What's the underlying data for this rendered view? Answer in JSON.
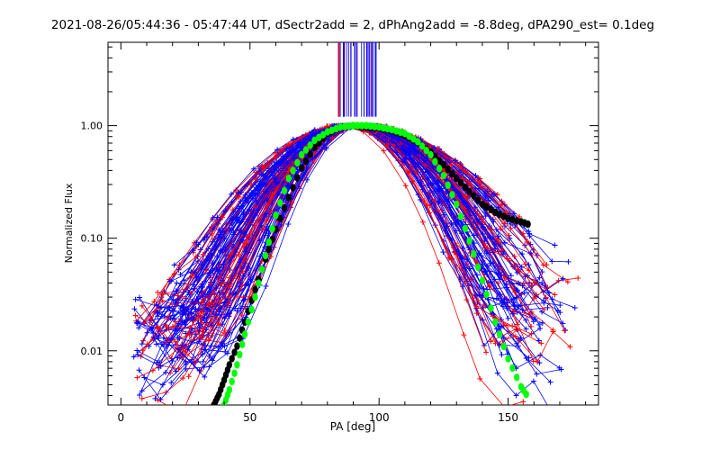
{
  "chart_data": {
    "type": "line",
    "title": "2021-08-26/05:44:36 - 05:47:44 UT, dSectr2add = 2, dPhAng2add = -8.8deg, dPA290_est=  0.1deg",
    "xlabel": "PA [deg]",
    "ylabel": "Normalized Flux",
    "xlim": [
      -5,
      185
    ],
    "ylim": [
      0.0033,
      5.5
    ],
    "yscale": "log",
    "x_ticks": [
      0,
      50,
      100,
      150
    ],
    "x_tick_labels": [
      "0",
      "50",
      "100",
      "150"
    ],
    "y_ticks": [
      0.01,
      0.1,
      1.0
    ],
    "y_tick_labels": [
      "0.01",
      "0.10",
      "1.00"
    ],
    "grid": false,
    "legend": "none",
    "colors": {
      "red_curves": "#ff0000",
      "blue_curves": "#0000ff",
      "black_fit": "#000000",
      "green_fit": "#00ff00",
      "axes": "#000000"
    },
    "series": [
      {
        "style": "black dotted fit",
        "x": [
          36,
          38,
          40,
          42,
          45,
          48,
          52,
          56,
          60,
          65,
          70,
          75,
          80,
          85,
          90,
          95,
          100,
          105,
          110,
          115,
          120,
          125,
          130,
          135,
          140,
          145,
          150,
          155,
          159
        ],
        "y": [
          0.0033,
          0.0041,
          0.0055,
          0.0075,
          0.011,
          0.018,
          0.035,
          0.065,
          0.12,
          0.23,
          0.42,
          0.64,
          0.85,
          0.97,
          1.0,
          0.97,
          0.95,
          0.9,
          0.82,
          0.71,
          0.58,
          0.45,
          0.34,
          0.26,
          0.2,
          0.17,
          0.15,
          0.14,
          0.13
        ]
      },
      {
        "style": "green dotted fit",
        "x": [
          40,
          42,
          45,
          48,
          52,
          56,
          60,
          65,
          70,
          75,
          80,
          85,
          90,
          95,
          100,
          105,
          110,
          115,
          120,
          125,
          130,
          135,
          140,
          145,
          150,
          155,
          158
        ],
        "y": [
          0.0033,
          0.0045,
          0.0075,
          0.014,
          0.03,
          0.07,
          0.16,
          0.34,
          0.55,
          0.74,
          0.88,
          0.97,
          1.0,
          1.0,
          0.97,
          0.92,
          0.85,
          0.72,
          0.55,
          0.36,
          0.2,
          0.095,
          0.042,
          0.018,
          0.0085,
          0.0048,
          0.0038
        ]
      }
    ]
  }
}
